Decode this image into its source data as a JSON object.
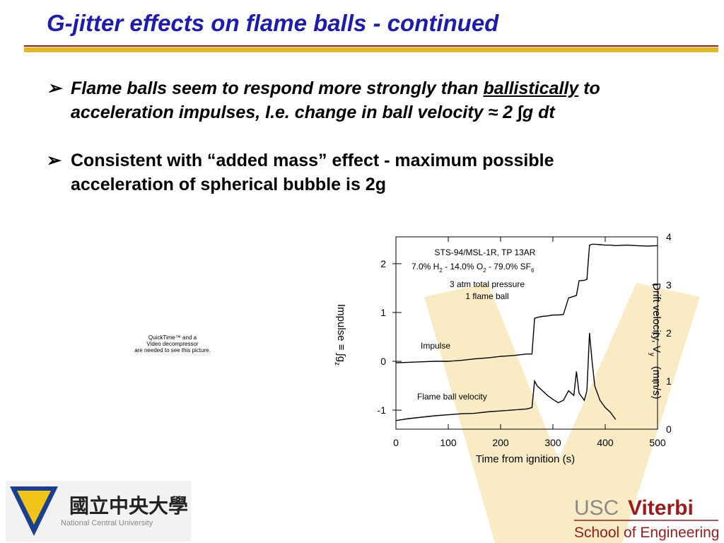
{
  "header": {
    "title": "G-jitter effects on flame balls - continued"
  },
  "bullets": [
    {
      "parts": [
        "Flame balls seem to respond more strongly than ",
        "ballistically",
        " to acceleration impulses, I.e. change in ball velocity ≈ 2 ∫g dt"
      ]
    },
    {
      "parts": [
        "Consistent with “added mass” effect - maximum possible acceleration of spherical bubble is 2g"
      ]
    }
  ],
  "placeholder": {
    "lines": [
      "QuickTime™ and a",
      "Video decompressor",
      "are needed to see this picture."
    ]
  },
  "figure": {
    "type": "line",
    "x_label": "Time from ignition (s)",
    "y_label_parts": [
      "Impulse ≡ ∫g",
      "z"
    ],
    "y2_label_parts": [
      "Drift velocity, V",
      "y",
      "(mm/s)"
    ],
    "annotations": {
      "mission": "STS-94/MSL-1R, TP 13AR",
      "mixture_parts": [
        "7.0% H",
        "2",
        " - 14.0% O",
        "2",
        " - 79.0% SF",
        "6"
      ],
      "pressure": "3 atm total pressure",
      "balls": "1 flame ball",
      "impulse": "Impulse",
      "velocity": "Flame ball velocity"
    },
    "xlim": [
      0,
      500
    ],
    "xticks": [
      0,
      100,
      200,
      300,
      400,
      500
    ],
    "ylim": [
      -1.39,
      2.55
    ],
    "yticks": [
      -1,
      0,
      1,
      2
    ],
    "y2lim": [
      0,
      4
    ],
    "y2ticks": [
      0,
      1,
      2,
      3,
      4
    ],
    "x": [
      0,
      25,
      50,
      75,
      100,
      125,
      150,
      175,
      200,
      225,
      250,
      260,
      265,
      270,
      280,
      290,
      300,
      310,
      320,
      330,
      340,
      345,
      350,
      360,
      365,
      370,
      375,
      380,
      390,
      400,
      410,
      420,
      440,
      460,
      480,
      500
    ],
    "series": [
      {
        "color": "#000000",
        "values": [
          -0.03,
          -0.02,
          -0.01,
          0,
          0,
          0.02,
          0.05,
          0.07,
          0.1,
          0.12,
          0.15,
          0.15,
          0.88,
          0.9,
          0.92,
          0.93,
          0.95,
          0.95,
          0.96,
          1.3,
          1.33,
          1.35,
          1.65,
          1.66,
          1.68,
          2.38,
          2.4,
          2.4,
          2.39,
          2.38,
          2.38,
          2.37,
          2.38,
          2.37,
          2.36,
          2.37
        ]
      },
      {
        "color": "#000000",
        "axis": "y2",
        "values": [
          0.18,
          0.22,
          0.25,
          0.28,
          0.3,
          0.32,
          0.33,
          0.36,
          0.38,
          0.4,
          0.42,
          0.45,
          1.0,
          0.9,
          0.8,
          0.7,
          0.62,
          0.55,
          0.6,
          0.8,
          0.7,
          1.2,
          0.75,
          0.6,
          0.8,
          2.0,
          1.4,
          0.9,
          0.6,
          0.45,
          0.35,
          0.2,
          null,
          null,
          null,
          null
        ]
      }
    ]
  },
  "logos": {
    "ncu_chinese": "國立中央大學",
    "ncu_english": "National Central University",
    "usc": "USC",
    "viterbi": "Viterbi",
    "school": "School of Engineering"
  }
}
